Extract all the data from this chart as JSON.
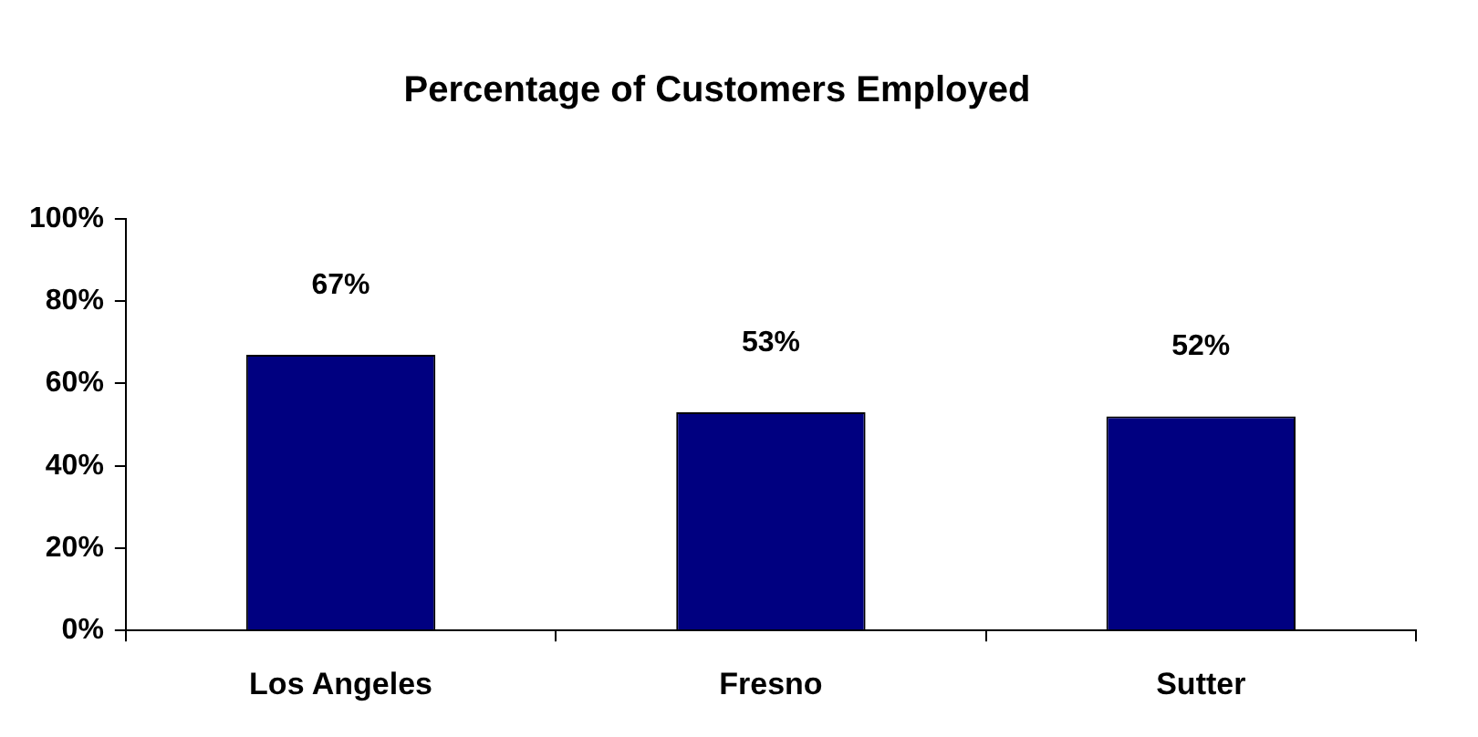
{
  "chart_data": {
    "type": "bar",
    "title": "Percentage of Customers Employed",
    "categories": [
      "Los Angeles",
      "Fresno",
      "Sutter"
    ],
    "values": [
      67,
      53,
      52
    ],
    "color": "#000080",
    "value_labels": [
      "67%",
      "53%",
      "52%"
    ],
    "ylim": [
      0,
      100
    ],
    "yticks": [
      {
        "value": 0,
        "label": "0%"
      },
      {
        "value": 20,
        "label": "20%"
      },
      {
        "value": 40,
        "label": "40%"
      },
      {
        "value": 60,
        "label": "60%"
      },
      {
        "value": 80,
        "label": "80%"
      },
      {
        "value": 100,
        "label": "100%"
      }
    ],
    "grid": false,
    "legend": false
  }
}
